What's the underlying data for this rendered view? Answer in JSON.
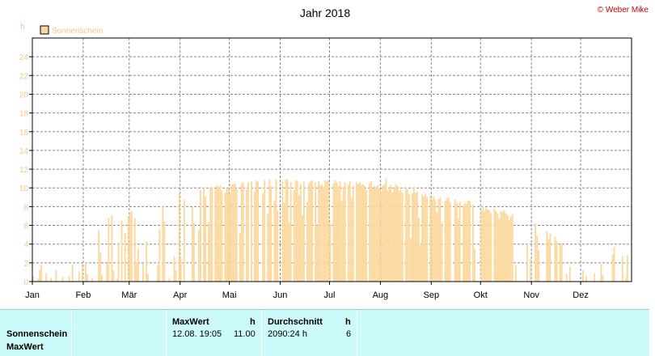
{
  "title": "Jahr 2018",
  "copyright": "© Weber Mike",
  "colors": {
    "bar": "#fcd89d",
    "legend_text": "#f5c77e",
    "grid": "#888888",
    "copyright": "#cc0000",
    "table_bg": "#ccfafa"
  },
  "chart_data": {
    "type": "bar",
    "title": "Jahr 2018",
    "ylabel": "h",
    "ylim": [
      0,
      26
    ],
    "yticks": [
      "0",
      "2",
      "4",
      "6",
      "8",
      "10",
      "12",
      "14",
      "16",
      "18",
      "20",
      "22",
      "24"
    ],
    "x_tick_labels": [
      "Jan",
      "Feb",
      "Mär",
      "Apr",
      "Mai",
      "Jun",
      "Jul",
      "Aug",
      "Sep",
      "Okt",
      "Nov",
      "Dez"
    ],
    "month_lengths": [
      31,
      28,
      31,
      30,
      31,
      30,
      31,
      31,
      30,
      31,
      30,
      31
    ],
    "grid": true,
    "legend_position": "top-left",
    "series": [
      {
        "name": "Sonnenschein",
        "daily_values": [
          0.6,
          0,
          0,
          0.3,
          1.2,
          1.8,
          0,
          0,
          0.9,
          0,
          0,
          0.4,
          0,
          0,
          1.3,
          0,
          0,
          0,
          0.5,
          0,
          0,
          0,
          0.6,
          0,
          1.8,
          0,
          0,
          0,
          1.1,
          0,
          1.9,
          0,
          2.1,
          0.8,
          0,
          0,
          0.4,
          0,
          0,
          0,
          5.5,
          3.1,
          0.7,
          0,
          0,
          1.9,
          6.8,
          0,
          7.1,
          1.2,
          0,
          0.3,
          4.2,
          0,
          6.5,
          0,
          5.2,
          0,
          6.9,
          7.4,
          7.6,
          0,
          6.8,
          2.1,
          3.5,
          0,
          0,
          1.9,
          0,
          4.3,
          0.8,
          0,
          0,
          0,
          0,
          0,
          1.8,
          5.6,
          0,
          8.1,
          6.4,
          0,
          0,
          0.4,
          0,
          0,
          2.7,
          1.2,
          0,
          9.4,
          2.6,
          0,
          8.8,
          0,
          0,
          0,
          0,
          7.9,
          6.2,
          0,
          0,
          5.5,
          9.8,
          0,
          10.0,
          9.1,
          0,
          6.3,
          10.0,
          10.1,
          0,
          9.9,
          10.3,
          10.1,
          10.3,
          9.7,
          0,
          9.5,
          9.9,
          10.1,
          9.4,
          10.4,
          10.4,
          10.5,
          9.9,
          0,
          5.2,
          10.5,
          10.6,
          0,
          9.8,
          10.6,
          0,
          10.7,
          0,
          9.6,
          10.8,
          10.7,
          0,
          0,
          9.4,
          10.8,
          0,
          7.2,
          10.9,
          10.2,
          0,
          8.6,
          10.9,
          7.6,
          0,
          0,
          10.7,
          8.4,
          10.9,
          10.9,
          6.3,
          10.6,
          0,
          9.8,
          10.8,
          10.7,
          9.2,
          10.4,
          7.1,
          10.7,
          0,
          8.5,
          10.5,
          10.7,
          10.8,
          0,
          10.6,
          5.9,
          10.7,
          10.3,
          10.4,
          10.1,
          10.8,
          10.7,
          10.8,
          6.2,
          0,
          10.5,
          10.8,
          10.6,
          10.2,
          10.7,
          8.6,
          10.1,
          10.6,
          0,
          10.3,
          10.7,
          8.9,
          10.2,
          0,
          10.6,
          10.4,
          10.6,
          10.3,
          10.4,
          10.2,
          9.8,
          0,
          10.5,
          10.7,
          9.9,
          10.2,
          10.1,
          10.3,
          10.0,
          9.6,
          10.2,
          10.4,
          11.0,
          9.7,
          10.1,
          10.3,
          9.5,
          10.1,
          10.4,
          10.2,
          9.7,
          9.8,
          9.5,
          0,
          10.1,
          9.9,
          9.3,
          4.6,
          9.4,
          10.1,
          9.5,
          9.6,
          6.8,
          3.9,
          9.3,
          9.1,
          9.4,
          9.0,
          0,
          9.2,
          8.8,
          9.1,
          8.7,
          7.4,
          8.8,
          9.0,
          6.2,
          0,
          8.6,
          8.9,
          9.0,
          8.5,
          0,
          0,
          8.8,
          8.4,
          6.7,
          8.5,
          0,
          8.1,
          8.4,
          8.3,
          8.7,
          8.6,
          0,
          8.2,
          3.5,
          0,
          0,
          0,
          7.6,
          8.1,
          7.5,
          7.9,
          7.7,
          7.6,
          7.3,
          0,
          7.8,
          7.5,
          7.2,
          6.7,
          7.5,
          7.4,
          7.6,
          7.3,
          7.1,
          6.6,
          7.0,
          7.2,
          0,
          1.8,
          0,
          0,
          0,
          0,
          0,
          0,
          4.0,
          0,
          2.5,
          0,
          0,
          6.2,
          4.9,
          3.3,
          0,
          0,
          0,
          0,
          5.4,
          4.5,
          5.1,
          0,
          0,
          4.8,
          4.3,
          0,
          3.9,
          4.1,
          0,
          0,
          0.8,
          0,
          1.6,
          0,
          0,
          0,
          0,
          0,
          0,
          0,
          1.2,
          0,
          0.6,
          0,
          0,
          0,
          0,
          0.9,
          0,
          0,
          0,
          1.9,
          0.7,
          0,
          0,
          0,
          0,
          0,
          2.9,
          3.7,
          0,
          0,
          0,
          0,
          2.7,
          0,
          0.4,
          2.8
        ]
      }
    ]
  },
  "table": {
    "row1_label": "Sonnenschein",
    "row2_label": "MaxWert",
    "max_header": "MaxWert",
    "max_unit": "h",
    "max_datetime": "12.08.  19:05",
    "max_value": "11.00",
    "avg_header": "Durchschnitt",
    "avg_unit": "h",
    "avg_value": "2090:24 h",
    "avg_count": "6"
  }
}
